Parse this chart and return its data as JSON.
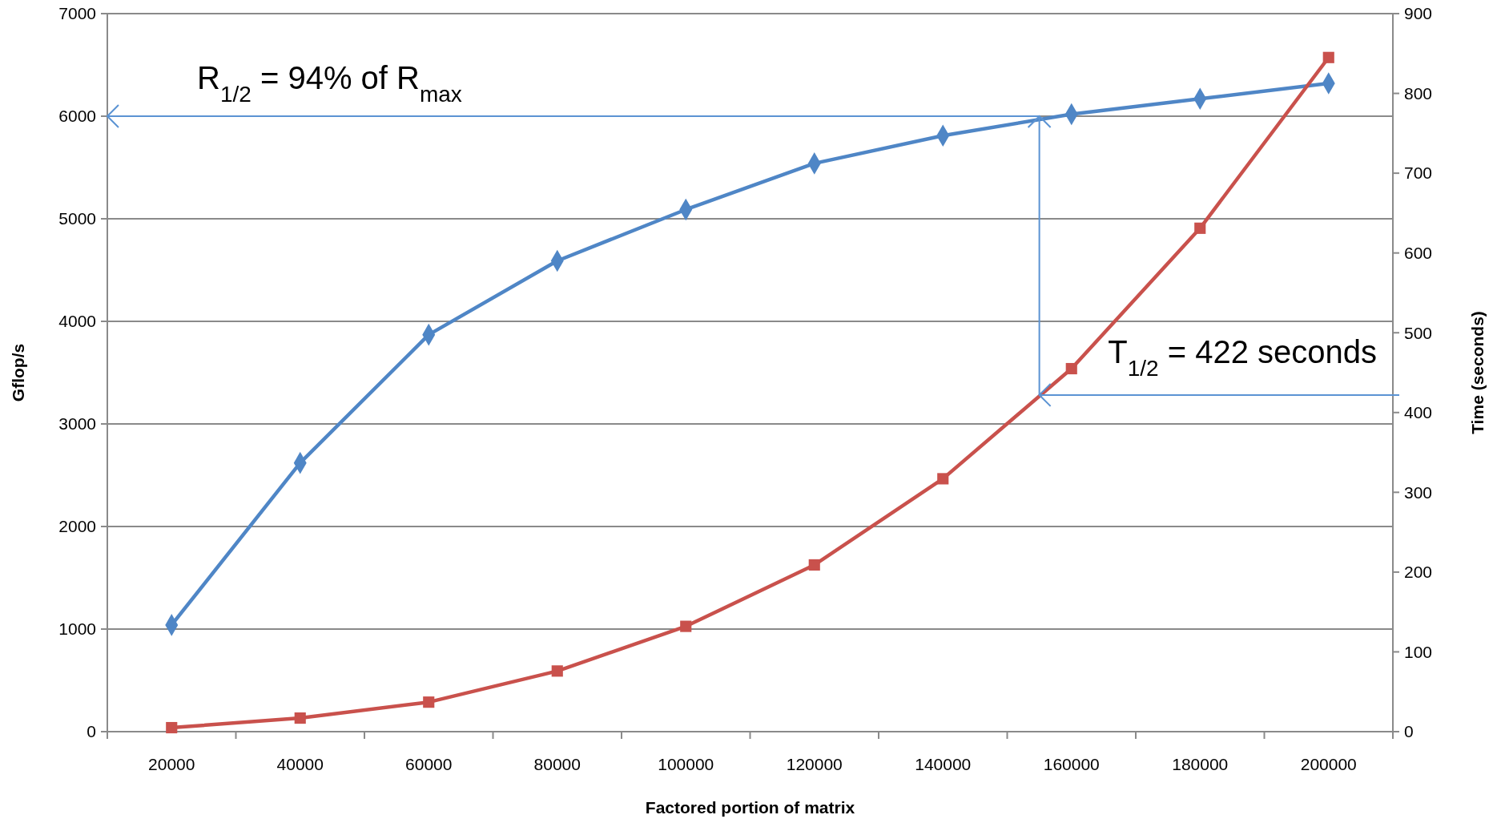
{
  "chart_data": {
    "type": "line",
    "xlabel": "Factored portion of matrix",
    "ylabel": "Gflop/s",
    "y2label": "Time (seconds)",
    "categories": [
      "20000",
      "40000",
      "60000",
      "80000",
      "100000",
      "120000",
      "140000",
      "160000",
      "180000",
      "200000"
    ],
    "series": [
      {
        "color": "#4f86c6",
        "marker": "diamond",
        "values": [
          1040,
          2620,
          3870,
          4590,
          5090,
          5540,
          5810,
          6020,
          6170,
          6320
        ]
      },
      {
        "color": "#c9514c",
        "marker": "square",
        "axis": "y2",
        "values": [
          5,
          17,
          37,
          76,
          132,
          209,
          317,
          455,
          631,
          845
        ]
      }
    ],
    "ylim": [
      0,
      7000
    ],
    "yticks": [
      0,
      1000,
      2000,
      3000,
      4000,
      5000,
      6000,
      7000
    ],
    "y2lim": [
      0,
      900
    ],
    "y2ticks": [
      0,
      100,
      200,
      300,
      400,
      500,
      600,
      700,
      800,
      900
    ],
    "grid": "y",
    "line_style": "solid",
    "ref_lines": [
      {
        "axis": "y",
        "value": 6000,
        "color": "#5b93d3"
      },
      {
        "axis": "y2",
        "value": 422,
        "color": "#5b93d3"
      }
    ],
    "annotations": [
      "R$_{1/2}$ = 94% of R$_{max}$",
      "T$_{1/2}$ = 422 seconds"
    ]
  }
}
